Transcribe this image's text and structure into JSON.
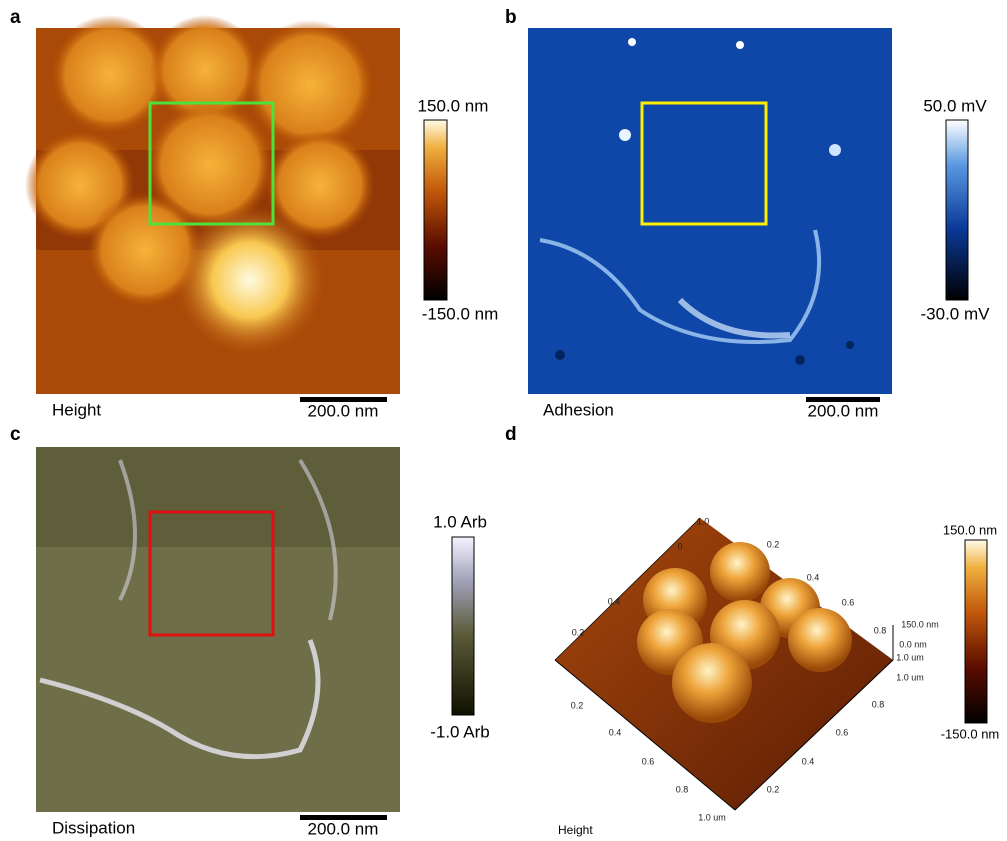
{
  "panels": [
    {
      "label": "a",
      "caption": "Height",
      "scale_bar": "200.0 nm",
      "colorbar": {
        "max": "150.0 nm",
        "min": "-150.0 nm"
      }
    },
    {
      "label": "b",
      "caption": "Adhesion",
      "scale_bar": "200.0 nm",
      "colorbar": {
        "max": "50.0 mV",
        "min": "-30.0 mV"
      }
    },
    {
      "label": "c",
      "caption": "Dissipation",
      "scale_bar": "200.0 nm",
      "colorbar": {
        "max": "1.0 Arb",
        "min": "-1.0 Arb"
      }
    },
    {
      "label": "d",
      "caption": "Height",
      "colorbar": {
        "max": "150.0 nm",
        "min": "-150.0 nm"
      },
      "axis_labels": [
        "0.2",
        "0.4",
        "1.0",
        "0",
        "0.2",
        "0.4",
        "0.6",
        "0.8",
        "0.2",
        "0.4",
        "0.6",
        "0.8",
        "1.0 um",
        "0.8",
        "0.6",
        "0.4",
        "0.2",
        "150.0 nm",
        "0.0 nm",
        "1.0 um",
        "1.0 um"
      ]
    }
  ]
}
